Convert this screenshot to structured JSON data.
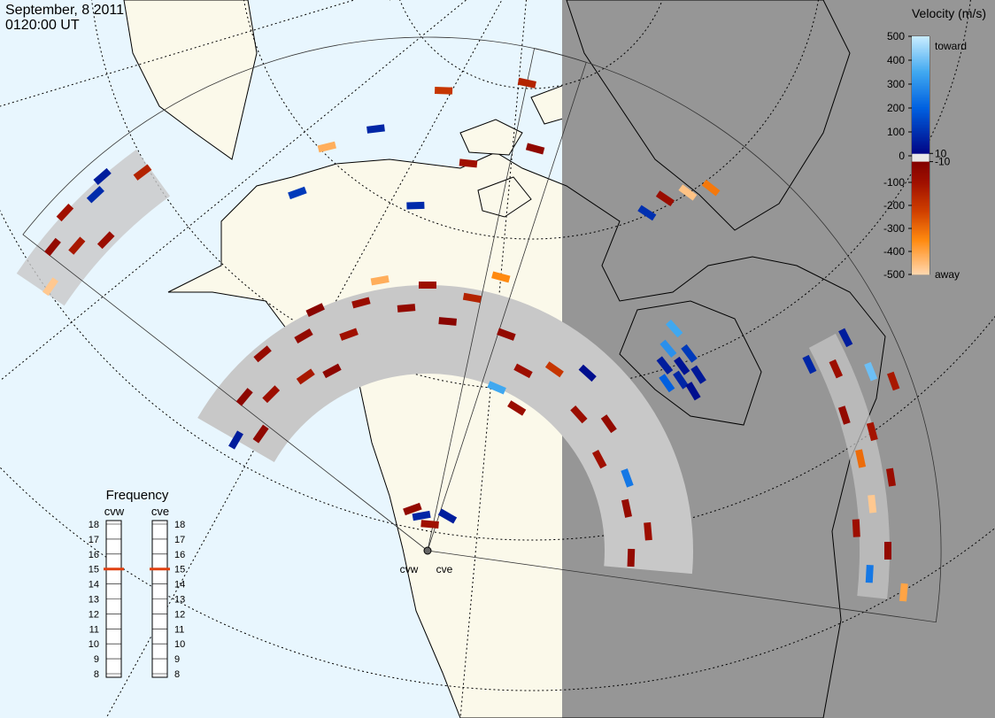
{
  "header": {
    "date": "September, 8 2011",
    "time": "0120:00 UT"
  },
  "radars": [
    "cvw",
    "cve"
  ],
  "velocity_scale": {
    "title": "Velocity (m/s)",
    "range": [
      -500,
      500
    ],
    "ticks": [
      500,
      400,
      300,
      200,
      100,
      10,
      0,
      -10,
      -100,
      -200,
      -300,
      -400,
      -500
    ],
    "top_label": "toward",
    "bottom_label": "away"
  },
  "frequency": {
    "title": "Frequency",
    "range": [
      8,
      18
    ],
    "ticks": [
      18,
      17,
      16,
      15,
      14,
      13,
      12,
      11,
      10,
      9,
      8
    ],
    "values": [
      15,
      15
    ]
  },
  "cells": [
    -60,
    -120,
    -80,
    90,
    -470,
    60,
    -150,
    -100,
    80,
    -200,
    120,
    -150,
    -420,
    -100,
    90,
    -50,
    -40,
    -90,
    -70,
    -120,
    -60,
    -30,
    -100,
    -80,
    -420,
    -60,
    -90,
    -30,
    -150,
    -350,
    -60,
    -90,
    -200,
    30,
    -80,
    -60,
    -100,
    250,
    -70,
    -90,
    -60,
    -50,
    60,
    -40,
    350,
    -80,
    60,
    40,
    80,
    120,
    50,
    300,
    30,
    200,
    350,
    60,
    -90,
    400,
    -60,
    -110,
    -300,
    -80,
    -470,
    -90,
    -60,
    250,
    -400,
    -120,
    80,
    -80,
    -460,
    -320,
    100,
    80,
    -100,
    60,
    -60
  ]
}
